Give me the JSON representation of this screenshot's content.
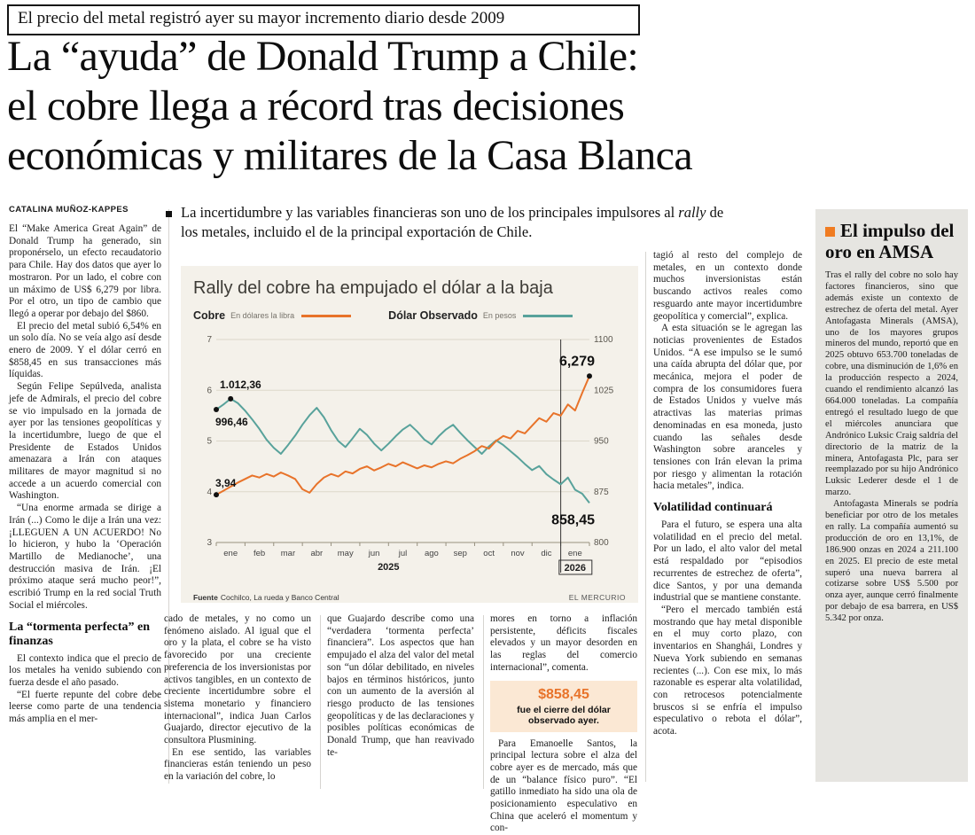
{
  "page": {
    "kicker": "El precio del metal registró ayer su mayor incremento diario desde 2009",
    "headline_lines": [
      "La “ayuda” de Donald Trump a Chile:",
      "el cobre llega a récord tras decisiones",
      "económicas y militares de la Casa Blanca"
    ],
    "byline": "CATALINA MUÑOZ-KAPPES",
    "lede_pre": "La incertidumbre y las variables financieras son uno de los principales impulsores al ",
    "lede_italic": "rally",
    "lede_post": " de los metales, incluido el de la principal exportación de Chile."
  },
  "col_left": {
    "paras": [
      "El “Make America Great Again” de Donald Trump ha generado, sin proponérselo, un efecto recaudatorio para Chile. Hay dos datos que ayer lo mostraron. Por un lado, el cobre con un máximo de US$ 6,279 por libra. Por el otro, un tipo de cambio que llegó a operar por debajo del $860.",
      "El precio del metal subió 6,54% en un solo día. No se veía algo así desde enero de 2009. Y el dólar cerró en $858,45 en sus transacciones más líquidas.",
      "Según Felipe Sepúlveda, analista jefe de Admirals, el precio del cobre se vio impulsado en la jornada de ayer por las tensiones geopolíticas y la incertidumbre, luego de que el Presidente de Estados Unidos amenazara a Irán con ataques militares de mayor magnitud si no accede a un acuerdo comercial con Washington.",
      "“Una enorme armada se dirige a Irán (...) Como le dije a Irán una vez: ¡LLEGUEN A UN ACUERDO! No lo hicieron, y hubo la ‘Operación Martillo de Medianoche’, una destrucción masiva de Irán. ¡El próximo ataque será mucho peor!”, escribió Trump en la red social Truth Social el miércoles."
    ],
    "subhead": "La “tormenta perfecta” en finanzas",
    "paras2": [
      "El contexto indica que el precio de los metales ha venido subiendo con fuerza desde el año pasado.",
      "“El fuerte repunte del cobre debe leerse como parte de una tendencia más amplia en el mer-"
    ]
  },
  "col_a": {
    "paras": [
      "cado de metales, y no como un fenómeno aislado. Al igual que el oro y la plata, el cobre se ha visto favorecido por una creciente preferencia de los inversionistas por activos tangibles, en un contexto de creciente incertidumbre sobre el sistema monetario y financiero internacional”, indica Juan Carlos Guajardo, director ejecutivo de la consultora Plusmining.",
      "En ese sentido, las variables financieras están teniendo un peso en la variación del cobre, lo"
    ]
  },
  "col_b": {
    "paras": [
      "que Guajardo describe como una “verdadera ‘tormenta perfecta’ financiera”. Los aspectos que han empujado el alza del valor del metal son “un dólar debilitado, en niveles bajos en términos históricos, junto con un aumento de la aversión al riesgo producto de las tensiones geopolíticas y de las declaraciones y posibles políticas económicas de Donald Trump, que han reavivado te-"
    ]
  },
  "col_c": {
    "para1": "mores en torno a inflación persistente, déficits fiscales elevados y un mayor desorden en las reglas del comercio internacional”, comenta.",
    "highlight": {
      "value": "$858,45",
      "caption": "fue el cierre del dólar observado ayer."
    },
    "para2": "Para Emanoelle Santos, la principal lectura sobre el alza del cobre ayer es de mercado, más que de un “balance físico puro”. “El gatillo inmediato ha sido una ola de posicionamiento especulativo en China que aceleró el momentum y con-"
  },
  "col_right": {
    "paras": [
      "tagió al resto del complejo de metales, en un contexto donde muchos inversionistas están buscando activos reales como resguardo ante mayor incertidumbre geopolítica y comercial”, explica.",
      "A esta situación se le agregan las noticias provenientes de Estados Unidos. “A ese impulso se le sumó una caída abrupta del dólar que, por mecánica, mejora el poder de compra de los consumidores fuera de Estados Unidos y vuelve más atractivas las materias primas denominadas en esa moneda, justo cuando las señales desde Washington sobre aranceles y tensiones con Irán elevan la prima por riesgo y alimentan la rotación hacia metales”, indica."
    ],
    "subhead": "Volatilidad continuará",
    "paras2": [
      "Para el futuro, se espera una alta volatilidad en el precio del metal. Por un lado, el alto valor del metal está respaldado por “episodios recurrentes de estrechez de oferta”, dice Santos, y por una demanda industrial que se mantiene constante.",
      "“Pero el mercado también está mostrando que hay metal disponible en el muy corto plazo, con inventarios en Shanghái, Londres y Nueva York subiendo en semanas recientes (...). Con ese mix, lo más razonable es esperar alta volatilidad, con retrocesos potencialmente bruscos si se enfría el impulso especulativo o rebota el dólar”, acota."
    ]
  },
  "sidebar": {
    "heading": "El impulso del oro en AMSA",
    "accent_color": "#f07c22",
    "paras": [
      "Tras el rally del cobre no solo hay factores financieros, sino que además existe un contexto de estrechez de oferta del metal. Ayer Antofagasta Minerals (AMSA), uno de los mayores grupos mineros del mundo, reportó que en 2025 obtuvo 653.700 toneladas de cobre, una disminución de 1,6% en la producción respecto a 2024, cuando el rendimiento alcanzó las 664.000 toneladas. La compañía entregó el resultado luego de que el miércoles anunciara que Andrónico Luksic Craig saldría del directorio de la matriz de la minera, Antofagasta Plc, para ser reemplazado por su hijo Andrónico Luksic Lederer desde el 1 de marzo.",
      "Antofagasta Minerals se podría beneficiar por otro de los metales en rally. La compañía aumentó su producción de oro en 13,1%, de 186.900 onzas en 2024 a 211.100 en 2025. El precio de este metal superó una nueva barrera al cotizarse sobre US$ 5.500 por onza ayer, aunque cerró finalmente por debajo de esa barrera, en US$ 5.342 por onza."
    ]
  },
  "chart_data": {
    "type": "line",
    "title": "Rally del cobre ha empujado el dólar a la baja",
    "x_months": [
      "ene",
      "feb",
      "mar",
      "abr",
      "may",
      "jun",
      "jul",
      "ago",
      "sep",
      "oct",
      "nov",
      "dic",
      "ene"
    ],
    "year_left": "2025",
    "year_right": "2026",
    "left_axis": {
      "min": 3,
      "max": 7,
      "ticks": [
        7,
        6,
        5,
        4,
        3
      ]
    },
    "right_axis": {
      "min": 800,
      "max": 1100,
      "ticks": [
        1100,
        1025,
        950,
        875,
        800
      ]
    },
    "grid": true,
    "legend_position": "top",
    "series": [
      {
        "name": "Cobre",
        "unit": "En dólares la libra",
        "color": "#e8732a",
        "axis": "left",
        "values": [
          3.94,
          4.02,
          4.1,
          4.18,
          4.25,
          4.32,
          4.28,
          4.35,
          4.3,
          4.38,
          4.32,
          4.25,
          4.05,
          3.98,
          4.15,
          4.28,
          4.35,
          4.3,
          4.4,
          4.36,
          4.45,
          4.5,
          4.42,
          4.48,
          4.55,
          4.5,
          4.58,
          4.52,
          4.46,
          4.52,
          4.48,
          4.55,
          4.6,
          4.56,
          4.65,
          4.72,
          4.8,
          4.9,
          4.85,
          5.0,
          5.1,
          5.05,
          5.2,
          5.15,
          5.3,
          5.45,
          5.38,
          5.55,
          5.5,
          5.72,
          5.6,
          5.95,
          6.279
        ]
      },
      {
        "name": "Dólar Observado",
        "unit": "En pesos",
        "color": "#58a29b",
        "axis": "right",
        "values": [
          996.46,
          1004,
          1012.36,
          1006,
          995,
          982,
          968,
          952,
          940,
          931,
          944,
          958,
          974,
          988,
          999,
          985,
          966,
          950,
          941,
          954,
          968,
          959,
          946,
          936,
          946,
          957,
          967,
          974,
          964,
          952,
          945,
          957,
          967,
          974,
          962,
          951,
          941,
          931,
          942,
          951,
          944,
          935,
          926,
          916,
          907,
          913,
          901,
          893,
          886,
          896,
          878,
          872,
          858.45
        ]
      }
    ],
    "annotations": [
      {
        "id": "copper-start",
        "text": "3,94"
      },
      {
        "id": "copper-end",
        "text": "6,279"
      },
      {
        "id": "dollar-start",
        "text": "996,46"
      },
      {
        "id": "dollar-peak",
        "text": "1.012,36"
      },
      {
        "id": "dollar-end",
        "text": "858,45"
      }
    ],
    "source_label": "Fuente",
    "source": "Cochilco, La rueda y Banco Central",
    "credit": "EL MERCURIO"
  }
}
